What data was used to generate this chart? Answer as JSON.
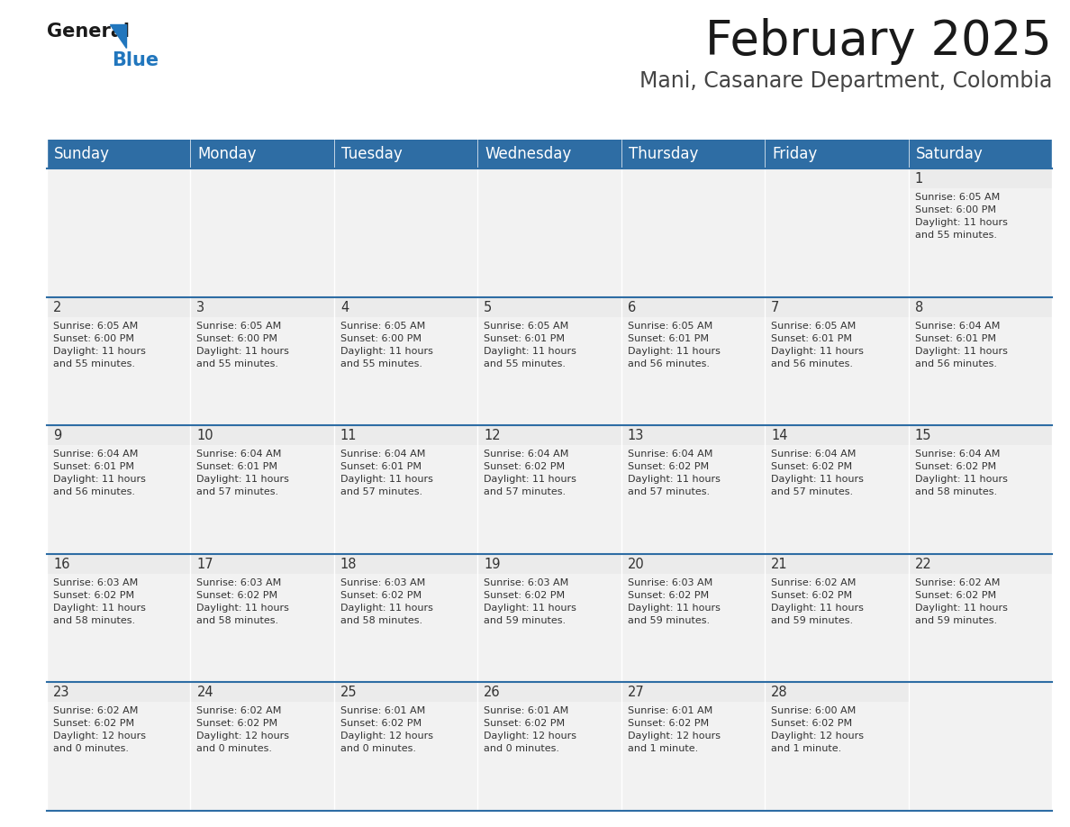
{
  "title": "February 2025",
  "subtitle": "Mani, Casanare Department, Colombia",
  "header_color": "#2E6DA4",
  "header_text_color": "#FFFFFF",
  "cell_bg_light": "#F2F2F2",
  "cell_bg_white": "#FFFFFF",
  "border_color": "#2E6DA4",
  "text_color": "#333333",
  "days_of_week": [
    "Sunday",
    "Monday",
    "Tuesday",
    "Wednesday",
    "Thursday",
    "Friday",
    "Saturday"
  ],
  "title_fontsize": 38,
  "subtitle_fontsize": 17,
  "header_fontsize": 12,
  "day_num_fontsize": 10.5,
  "cell_text_fontsize": 8,
  "calendar": [
    [
      null,
      null,
      null,
      null,
      null,
      null,
      {
        "day": "1",
        "sunrise": "6:05 AM",
        "sunset": "6:00 PM",
        "daylight_line1": "Daylight: 11 hours",
        "daylight_line2": "and 55 minutes."
      }
    ],
    [
      {
        "day": "2",
        "sunrise": "6:05 AM",
        "sunset": "6:00 PM",
        "daylight_line1": "Daylight: 11 hours",
        "daylight_line2": "and 55 minutes."
      },
      {
        "day": "3",
        "sunrise": "6:05 AM",
        "sunset": "6:00 PM",
        "daylight_line1": "Daylight: 11 hours",
        "daylight_line2": "and 55 minutes."
      },
      {
        "day": "4",
        "sunrise": "6:05 AM",
        "sunset": "6:00 PM",
        "daylight_line1": "Daylight: 11 hours",
        "daylight_line2": "and 55 minutes."
      },
      {
        "day": "5",
        "sunrise": "6:05 AM",
        "sunset": "6:01 PM",
        "daylight_line1": "Daylight: 11 hours",
        "daylight_line2": "and 55 minutes."
      },
      {
        "day": "6",
        "sunrise": "6:05 AM",
        "sunset": "6:01 PM",
        "daylight_line1": "Daylight: 11 hours",
        "daylight_line2": "and 56 minutes."
      },
      {
        "day": "7",
        "sunrise": "6:05 AM",
        "sunset": "6:01 PM",
        "daylight_line1": "Daylight: 11 hours",
        "daylight_line2": "and 56 minutes."
      },
      {
        "day": "8",
        "sunrise": "6:04 AM",
        "sunset": "6:01 PM",
        "daylight_line1": "Daylight: 11 hours",
        "daylight_line2": "and 56 minutes."
      }
    ],
    [
      {
        "day": "9",
        "sunrise": "6:04 AM",
        "sunset": "6:01 PM",
        "daylight_line1": "Daylight: 11 hours",
        "daylight_line2": "and 56 minutes."
      },
      {
        "day": "10",
        "sunrise": "6:04 AM",
        "sunset": "6:01 PM",
        "daylight_line1": "Daylight: 11 hours",
        "daylight_line2": "and 57 minutes."
      },
      {
        "day": "11",
        "sunrise": "6:04 AM",
        "sunset": "6:01 PM",
        "daylight_line1": "Daylight: 11 hours",
        "daylight_line2": "and 57 minutes."
      },
      {
        "day": "12",
        "sunrise": "6:04 AM",
        "sunset": "6:02 PM",
        "daylight_line1": "Daylight: 11 hours",
        "daylight_line2": "and 57 minutes."
      },
      {
        "day": "13",
        "sunrise": "6:04 AM",
        "sunset": "6:02 PM",
        "daylight_line1": "Daylight: 11 hours",
        "daylight_line2": "and 57 minutes."
      },
      {
        "day": "14",
        "sunrise": "6:04 AM",
        "sunset": "6:02 PM",
        "daylight_line1": "Daylight: 11 hours",
        "daylight_line2": "and 57 minutes."
      },
      {
        "day": "15",
        "sunrise": "6:04 AM",
        "sunset": "6:02 PM",
        "daylight_line1": "Daylight: 11 hours",
        "daylight_line2": "and 58 minutes."
      }
    ],
    [
      {
        "day": "16",
        "sunrise": "6:03 AM",
        "sunset": "6:02 PM",
        "daylight_line1": "Daylight: 11 hours",
        "daylight_line2": "and 58 minutes."
      },
      {
        "day": "17",
        "sunrise": "6:03 AM",
        "sunset": "6:02 PM",
        "daylight_line1": "Daylight: 11 hours",
        "daylight_line2": "and 58 minutes."
      },
      {
        "day": "18",
        "sunrise": "6:03 AM",
        "sunset": "6:02 PM",
        "daylight_line1": "Daylight: 11 hours",
        "daylight_line2": "and 58 minutes."
      },
      {
        "day": "19",
        "sunrise": "6:03 AM",
        "sunset": "6:02 PM",
        "daylight_line1": "Daylight: 11 hours",
        "daylight_line2": "and 59 minutes."
      },
      {
        "day": "20",
        "sunrise": "6:03 AM",
        "sunset": "6:02 PM",
        "daylight_line1": "Daylight: 11 hours",
        "daylight_line2": "and 59 minutes."
      },
      {
        "day": "21",
        "sunrise": "6:02 AM",
        "sunset": "6:02 PM",
        "daylight_line1": "Daylight: 11 hours",
        "daylight_line2": "and 59 minutes."
      },
      {
        "day": "22",
        "sunrise": "6:02 AM",
        "sunset": "6:02 PM",
        "daylight_line1": "Daylight: 11 hours",
        "daylight_line2": "and 59 minutes."
      }
    ],
    [
      {
        "day": "23",
        "sunrise": "6:02 AM",
        "sunset": "6:02 PM",
        "daylight_line1": "Daylight: 12 hours",
        "daylight_line2": "and 0 minutes."
      },
      {
        "day": "24",
        "sunrise": "6:02 AM",
        "sunset": "6:02 PM",
        "daylight_line1": "Daylight: 12 hours",
        "daylight_line2": "and 0 minutes."
      },
      {
        "day": "25",
        "sunrise": "6:01 AM",
        "sunset": "6:02 PM",
        "daylight_line1": "Daylight: 12 hours",
        "daylight_line2": "and 0 minutes."
      },
      {
        "day": "26",
        "sunrise": "6:01 AM",
        "sunset": "6:02 PM",
        "daylight_line1": "Daylight: 12 hours",
        "daylight_line2": "and 0 minutes."
      },
      {
        "day": "27",
        "sunrise": "6:01 AM",
        "sunset": "6:02 PM",
        "daylight_line1": "Daylight: 12 hours",
        "daylight_line2": "and 1 minute."
      },
      {
        "day": "28",
        "sunrise": "6:00 AM",
        "sunset": "6:02 PM",
        "daylight_line1": "Daylight: 12 hours",
        "daylight_line2": "and 1 minute."
      },
      null
    ]
  ]
}
